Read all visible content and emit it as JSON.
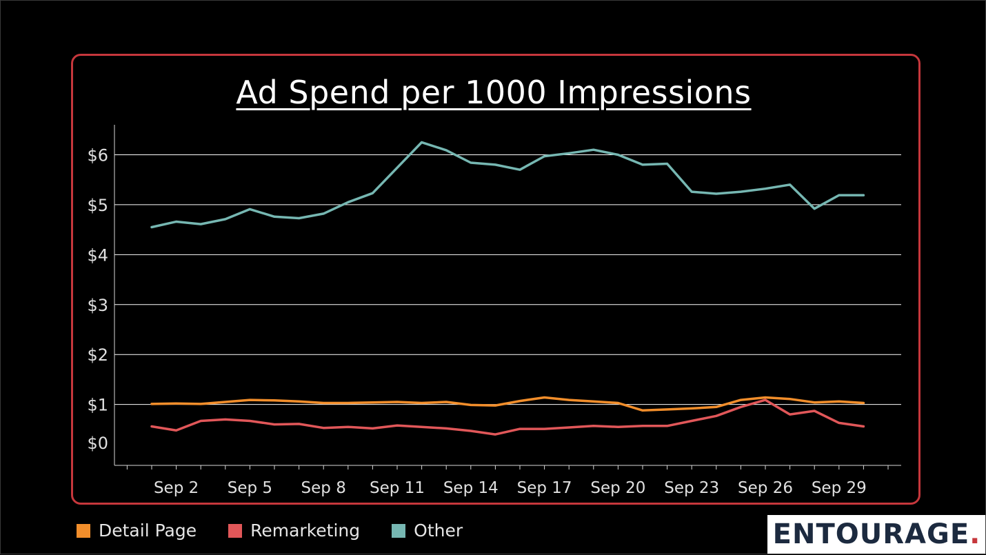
{
  "chart_data": {
    "type": "line",
    "title": "Ad Spend per 1000 Impressions",
    "xlabel": "",
    "ylabel": "",
    "ylim": [
      -0.22,
      6.6
    ],
    "y_ticks": [
      0,
      1,
      2,
      3,
      4,
      5,
      6
    ],
    "y_tick_labels": [
      "$0",
      "$1",
      "$2",
      "$3",
      "$4",
      "$5",
      "$6"
    ],
    "x_ticks": [
      "Sep 2",
      "Sep 5",
      "Sep 8",
      "Sep 11",
      "Sep 14",
      "Sep 17",
      "Sep 20",
      "Sep 23",
      "Sep 26",
      "Sep 29"
    ],
    "x": [
      "Sep 1",
      "Sep 2",
      "Sep 3",
      "Sep 4",
      "Sep 5",
      "Sep 6",
      "Sep 7",
      "Sep 8",
      "Sep 9",
      "Sep 10",
      "Sep 11",
      "Sep 12",
      "Sep 13",
      "Sep 14",
      "Sep 15",
      "Sep 16",
      "Sep 17",
      "Sep 18",
      "Sep 19",
      "Sep 20",
      "Sep 21",
      "Sep 22",
      "Sep 23",
      "Sep 24",
      "Sep 25",
      "Sep 26",
      "Sep 27",
      "Sep 28",
      "Sep 29",
      "Sep 30"
    ],
    "grid": true,
    "legend": "bottom-left",
    "series": [
      {
        "name": "Detail Page",
        "color": "#f28e2b",
        "values": [
          1.01,
          1.02,
          1.01,
          1.05,
          1.09,
          1.08,
          1.06,
          1.03,
          1.03,
          1.04,
          1.05,
          1.03,
          1.05,
          0.99,
          0.98,
          1.07,
          1.14,
          1.09,
          1.06,
          1.03,
          0.88,
          0.9,
          0.92,
          0.95,
          1.09,
          1.14,
          1.11,
          1.04,
          1.06,
          1.03
        ]
      },
      {
        "name": "Remarketing",
        "color": "#e15759",
        "values": [
          0.56,
          0.48,
          0.67,
          0.7,
          0.67,
          0.6,
          0.61,
          0.53,
          0.55,
          0.52,
          0.58,
          0.55,
          0.52,
          0.47,
          0.4,
          0.51,
          0.51,
          0.54,
          0.57,
          0.55,
          0.57,
          0.57,
          0.67,
          0.77,
          0.95,
          1.09,
          0.8,
          0.87,
          0.63,
          0.56
        ]
      },
      {
        "name": "Other",
        "color": "#76b7b2",
        "values": [
          4.55,
          4.66,
          4.61,
          4.71,
          4.91,
          4.76,
          4.73,
          4.82,
          5.05,
          5.23,
          5.74,
          6.25,
          6.09,
          5.84,
          5.8,
          5.7,
          5.97,
          6.03,
          6.1,
          6.0,
          5.8,
          5.82,
          5.26,
          5.22,
          5.26,
          5.32,
          5.4,
          4.92,
          5.19,
          5.19
        ]
      }
    ]
  },
  "legend": {
    "items": [
      {
        "label": "Detail Page",
        "color": "#f28e2b"
      },
      {
        "label": "Remarketing",
        "color": "#e15759"
      },
      {
        "label": "Other",
        "color": "#76b7b2"
      }
    ]
  },
  "logo": {
    "text": "ENTOURAGE",
    "dot": "."
  },
  "colors": {
    "panel_border": "#c6373c",
    "background": "#000000",
    "grid": "#ffffff"
  }
}
